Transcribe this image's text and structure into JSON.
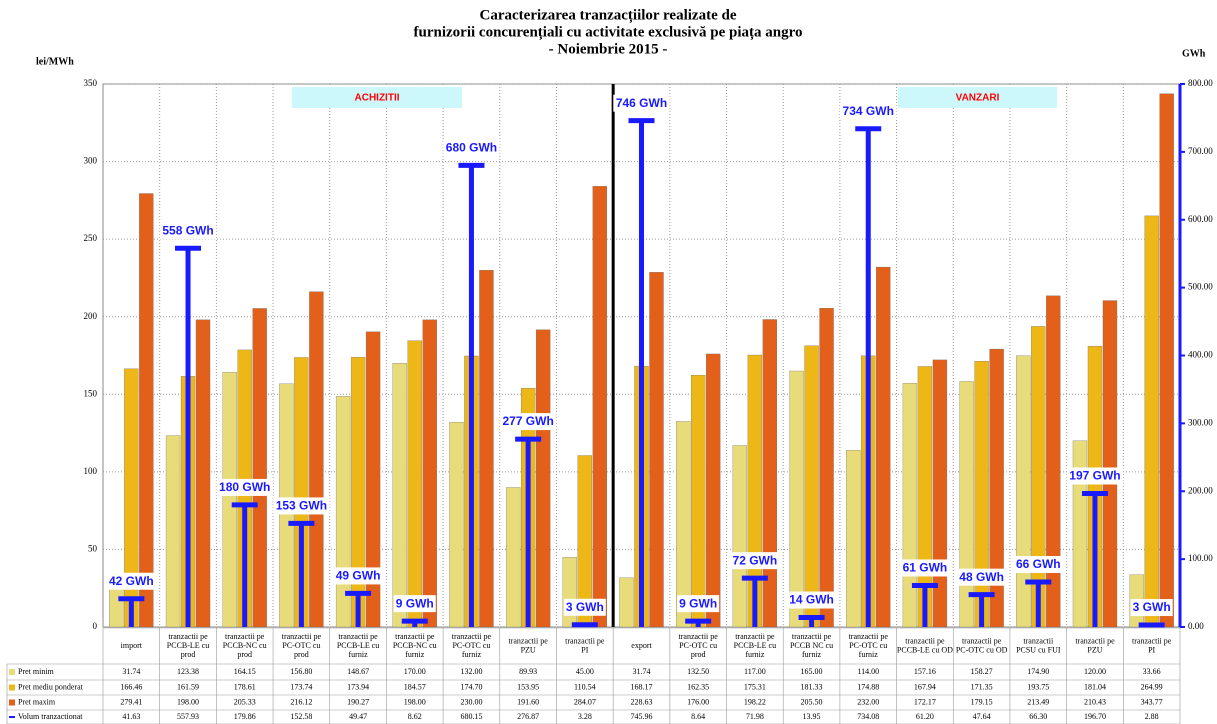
{
  "chart_data": {
    "type": "bar",
    "title": [
      "Caracterizarea tranzacțiilor realizate de",
      "furnizorii concurențiali cu activitate exclusivă pe piața angro",
      "- Noiembrie 2015 -"
    ],
    "y_label": "lei/MWh",
    "y2_label": "GWh",
    "annotations": [
      "ACHIZITII",
      "VANZARI"
    ],
    "categories": [
      "import",
      "tranzactii pe PCCB-LE cu prod",
      "tranzactii pe PCCB-NC cu prod",
      "tranzactii pe PC-OTC cu prod",
      "tranzactii pe PCCB-LE cu furniz",
      "tranzactii pe PCCB-NC cu furniz",
      "tranzactii pe PC-OTC cu furniz",
      "tranzactii pe PZU",
      "tranzactii pe PI",
      "export",
      "tranzactii pe PC-OTC cu prod",
      "tranzactii pe PCCB-LE cu furniz",
      "tranzactii pe PCCB NC cu furniz",
      "tranzactii pe PC-OTC cu furniz",
      "tranzactii pe PCCB-LE cu OD",
      "tranzactii pe PC-OTC cu OD",
      "tranzactii PCSU cu FUI",
      "tranzactii pe PZU",
      "tranzactii pe PI"
    ],
    "series": [
      {
        "name": "Pret minim",
        "color": "#e8dc7a",
        "values": [
          31.74,
          123.38,
          164.15,
          156.8,
          148.67,
          170,
          132,
          89.93,
          45,
          31.74,
          132.5,
          117,
          165,
          114,
          157.16,
          158.27,
          174.9,
          120,
          33.66
        ],
        "value_labels": [
          "31.74",
          "123.38",
          "164.15",
          "156.80",
          "148.67",
          "170.00",
          "132.00",
          "89.93",
          "45.00",
          "31.74",
          "132.50",
          "117.00",
          "165.00",
          "114.00",
          "157.16",
          "158.27",
          "174.90",
          "120.00",
          "33.66"
        ]
      },
      {
        "name": "Pret mediu ponderat",
        "color": "#eeb718",
        "values": [
          166.46,
          161.59,
          178.61,
          173.74,
          173.94,
          184.57,
          174.7,
          153.95,
          110.54,
          168.17,
          162.35,
          175.31,
          181.33,
          174.88,
          167.94,
          171.35,
          193.75,
          181.04,
          264.99
        ],
        "value_labels": [
          "166.46",
          "161.59",
          "178.61",
          "173.74",
          "173.94",
          "184.57",
          "174.70",
          "153.95",
          "110.54",
          "168.17",
          "162.35",
          "175.31",
          "181.33",
          "174.88",
          "167.94",
          "171.35",
          "193.75",
          "181.04",
          "264.99"
        ]
      },
      {
        "name": "Pret maxim",
        "color": "#e2601a",
        "values": [
          279.41,
          198,
          205.33,
          216.12,
          190.27,
          198,
          230,
          191.6,
          284.07,
          228.63,
          176,
          198.22,
          205.5,
          232,
          172.17,
          179.15,
          213.49,
          210.43,
          343.77
        ],
        "value_labels": [
          "279.41",
          "198.00",
          "205.33",
          "216.12",
          "190.27",
          "198.00",
          "230.00",
          "191.60",
          "284.07",
          "228.63",
          "176.00",
          "198.22",
          "205.50",
          "232.00",
          "172.17",
          "179.15",
          "213.49",
          "210.43",
          "343.77"
        ]
      },
      {
        "name": "Volum tranzactionat",
        "color": "#1a1aff",
        "axis": "y2",
        "values": [
          41.63,
          557.93,
          179.86,
          152.58,
          49.47,
          8.62,
          680.15,
          276.87,
          3.28,
          745.96,
          8.64,
          71.98,
          13.95,
          734.08,
          61.2,
          47.64,
          66.3,
          196.7,
          2.88
        ],
        "value_labels": [
          "42 GWh",
          "558 GWh",
          "180 GWh",
          "153 GWh",
          "49 GWh",
          "9 GWh",
          "680 GWh",
          "277 GWh",
          "3 GWh",
          "746 GWh",
          "9 GWh",
          "72 GWh",
          "14 GWh",
          "734 GWh",
          "61 GWh",
          "48 GWh",
          "66 GWh",
          "197 GWh",
          "3 GWh"
        ],
        "table_labels": [
          "41.63",
          "557.93",
          "179.86",
          "152.58",
          "49.47",
          "8.62",
          "680.15",
          "276.87",
          "3.28",
          "745.96",
          "8.64",
          "71.98",
          "13.95",
          "734.08",
          "61.20",
          "47.64",
          "66.30",
          "196.70",
          "2.88"
        ]
      }
    ],
    "ylim": [
      0,
      350
    ],
    "yticks": [
      0,
      50,
      100,
      150,
      200,
      250,
      300,
      350
    ],
    "y2lim": [
      0,
      800
    ],
    "y2ticks": [
      {
        "value": 0,
        "label": "0.00"
      },
      {
        "value": 100,
        "label": "100.00"
      },
      {
        "value": 200,
        "label": "200.00"
      },
      {
        "value": 300,
        "label": "300.00"
      },
      {
        "value": 400,
        "label": "400.00"
      },
      {
        "value": 500,
        "label": "500.00"
      },
      {
        "value": 600,
        "label": "600.00"
      },
      {
        "value": 700,
        "label": "700.00"
      },
      {
        "value": 800,
        "label": "800.00"
      }
    ],
    "grid": true
  }
}
